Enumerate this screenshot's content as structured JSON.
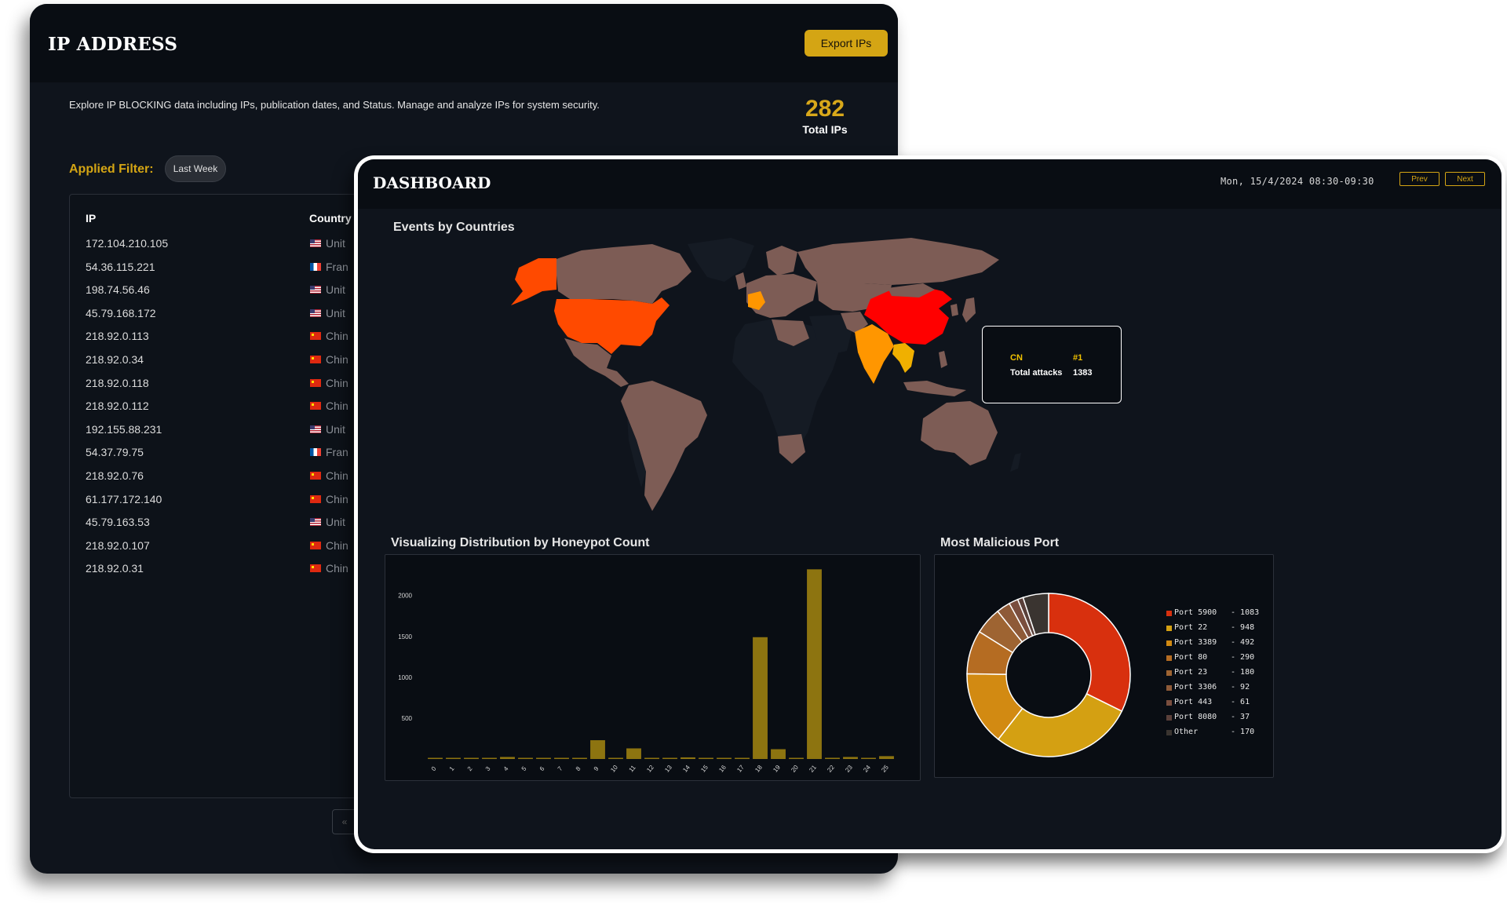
{
  "ip_window": {
    "title": "IP ADDRESS",
    "export_label": "Export IPs",
    "description": "Explore IP BLOCKING data including IPs, publication dates, and Status. Manage and analyze IPs for system security.",
    "total_count": "282",
    "total_label": "Total IPs",
    "filter_label": "Applied Filter:",
    "filter_value": "Last Week",
    "columns": {
      "ip": "IP",
      "country": "Country"
    },
    "rows": [
      {
        "ip": "172.104.210.105",
        "flag": "us",
        "country": "Unit"
      },
      {
        "ip": "54.36.115.221",
        "flag": "fr",
        "country": "Fran"
      },
      {
        "ip": "198.74.56.46",
        "flag": "us",
        "country": "Unit"
      },
      {
        "ip": "45.79.168.172",
        "flag": "us",
        "country": "Unit"
      },
      {
        "ip": "218.92.0.113",
        "flag": "cn",
        "country": "Chin"
      },
      {
        "ip": "218.92.0.34",
        "flag": "cn",
        "country": "Chin"
      },
      {
        "ip": "218.92.0.118",
        "flag": "cn",
        "country": "Chin"
      },
      {
        "ip": "218.92.0.112",
        "flag": "cn",
        "country": "Chin"
      },
      {
        "ip": "192.155.88.231",
        "flag": "us",
        "country": "Unit"
      },
      {
        "ip": "54.37.79.75",
        "flag": "fr",
        "country": "Fran"
      },
      {
        "ip": "218.92.0.76",
        "flag": "cn",
        "country": "Chin"
      },
      {
        "ip": "61.177.172.140",
        "flag": "cn",
        "country": "Chin"
      },
      {
        "ip": "45.79.163.53",
        "flag": "us",
        "country": "Unit"
      },
      {
        "ip": "218.92.0.107",
        "flag": "cn",
        "country": "Chin"
      },
      {
        "ip": "218.92.0.31",
        "flag": "cn",
        "country": "Chin"
      }
    ],
    "pager_label": "«"
  },
  "dashboard": {
    "title": "DASHBOARD",
    "datetime": "Mon, 15/4/2024 08:30-09:30",
    "prev_label": "Prev",
    "next_label": "Next",
    "map_title": "Events by Countries",
    "bar_title": "Visualizing Distribution by Honeypot Count",
    "port_title": "Most Malicious Port",
    "tooltip": {
      "code": "CN",
      "rank": "#1",
      "label": "Total attacks",
      "value": "1383"
    },
    "map_colors": {
      "default_land": "#7d5c55",
      "no_data_land": "#151b24",
      "highest": "#ff0000",
      "high": "#ff4a00",
      "medium": "#ff9600",
      "low": "#f0b000"
    }
  },
  "chart_data": [
    {
      "type": "bar",
      "title": "Visualizing Distribution by Honeypot Count",
      "categories": [
        "0",
        "1",
        "2",
        "3",
        "4",
        "5",
        "6",
        "7",
        "8",
        "9",
        "10",
        "11",
        "12",
        "13",
        "14",
        "15",
        "16",
        "17",
        "18",
        "19",
        "20",
        "21",
        "22",
        "23",
        "24",
        "25"
      ],
      "values": [
        5,
        5,
        5,
        5,
        25,
        5,
        10,
        5,
        5,
        230,
        5,
        130,
        5,
        5,
        20,
        5,
        5,
        5,
        1490,
        120,
        10,
        2320,
        15,
        25,
        5,
        35
      ],
      "y_ticks": [
        500,
        1000,
        1500,
        2000
      ],
      "ylim": [
        0,
        2400
      ],
      "bar_color": "#8d7410",
      "grid": false
    },
    {
      "type": "pie",
      "title": "Most Malicious Port",
      "style": "donut",
      "legend_placement": "right",
      "labels": [
        "Port 5900",
        "Port 22",
        "Port 3389",
        "Port 80",
        "Port 23",
        "Port 3306",
        "Port 443",
        "Port 8080",
        "Other"
      ],
      "values": [
        1083,
        948,
        492,
        290,
        180,
        92,
        61,
        37,
        170
      ],
      "colors": [
        "#d8300e",
        "#d4a012",
        "#d28a12",
        "#b56c22",
        "#9e6432",
        "#8e5a38",
        "#7a4e3e",
        "#5a403a",
        "#3a3430"
      ]
    }
  ]
}
